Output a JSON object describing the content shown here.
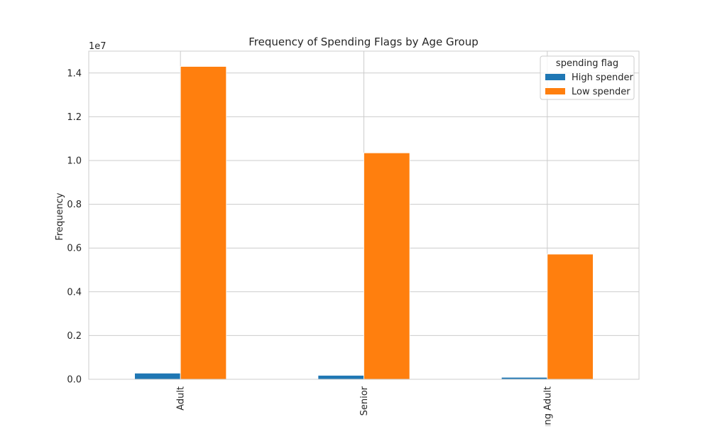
{
  "chart_data": {
    "type": "bar",
    "title": "Frequency of Spending Flags by Age Group",
    "xlabel": "",
    "ylabel": "Frequency",
    "y_offset_label": "1e7",
    "y_scale": 10000000,
    "ylim": [
      0,
      15000000
    ],
    "yticks": [
      0,
      2000000,
      4000000,
      6000000,
      8000000,
      10000000,
      12000000,
      14000000
    ],
    "ytick_labels": [
      "0.0",
      "0.2",
      "0.4",
      "0.6",
      "0.8",
      "1.0",
      "1.2",
      "1.4"
    ],
    "categories": [
      "Adult",
      "Senior",
      "Young Adult"
    ],
    "series": [
      {
        "name": "High spender",
        "color": "#1f77b4",
        "values": [
          280000,
          180000,
          90000
        ]
      },
      {
        "name": "Low spender",
        "color": "#ff7f0e",
        "values": [
          14300000,
          10350000,
          5720000
        ]
      }
    ],
    "legend": {
      "title": "spending flag",
      "placement": "top-right"
    },
    "grid": true,
    "style": {
      "grid_color": "#cccccc",
      "background": "#ffffff"
    }
  }
}
